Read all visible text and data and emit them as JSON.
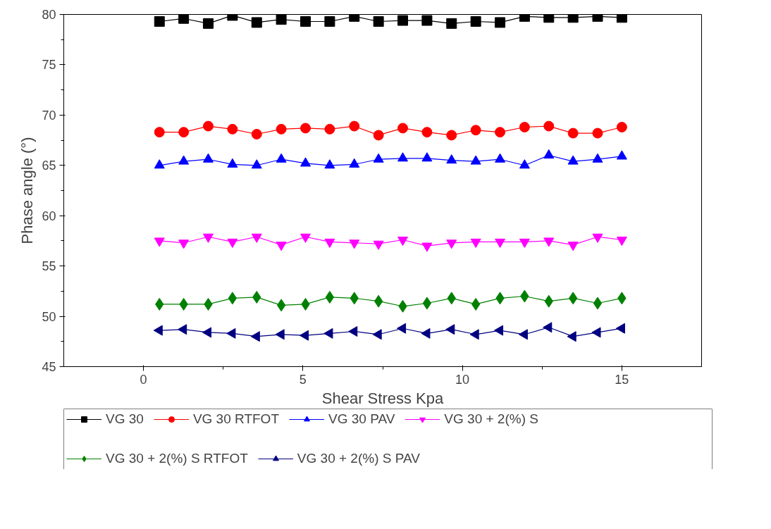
{
  "chart_data": {
    "type": "line",
    "xlabel": "Shear Stress Kpa",
    "ylabel": "Phase angle (°)",
    "x": [
      0.5,
      1.26,
      2.03,
      2.79,
      3.55,
      4.32,
      5.08,
      5.84,
      6.61,
      7.37,
      8.13,
      8.89,
      9.66,
      10.42,
      11.18,
      11.95,
      12.71,
      13.47,
      14.24,
      15.0
    ],
    "xlim": [
      -2.5,
      17.5
    ],
    "xticks": [
      0,
      5,
      10,
      15
    ],
    "ylim": [
      45,
      80
    ],
    "yticks": [
      45,
      50,
      55,
      60,
      65,
      70,
      75,
      80
    ],
    "grid": false,
    "legend": "bottom",
    "line_style": "solid",
    "series": [
      {
        "name": "VG 30",
        "color": "#000000",
        "marker": "square",
        "values": [
          79.3,
          79.6,
          79.1,
          79.9,
          79.2,
          79.5,
          79.3,
          79.3,
          79.8,
          79.3,
          79.4,
          79.4,
          79.1,
          79.3,
          79.2,
          79.8,
          79.7,
          79.7,
          79.8,
          79.7
        ]
      },
      {
        "name": "VG 30 RTFOT",
        "color": "#ff0000",
        "marker": "circle",
        "values": [
          68.3,
          68.3,
          68.9,
          68.6,
          68.1,
          68.6,
          68.7,
          68.6,
          68.9,
          68.0,
          68.7,
          68.3,
          68.0,
          68.5,
          68.3,
          68.8,
          68.9,
          68.2,
          68.2,
          68.8
        ]
      },
      {
        "name": "VG 30 PAV",
        "color": "#0000ff",
        "marker": "triangle",
        "values": [
          65.0,
          65.4,
          65.6,
          65.1,
          65.0,
          65.6,
          65.2,
          65.0,
          65.1,
          65.6,
          65.7,
          65.7,
          65.5,
          65.4,
          65.6,
          65.0,
          66.0,
          65.4,
          65.6,
          65.9
        ]
      },
      {
        "name": "VG 30 + 2(%) S",
        "color": "#ff00ff",
        "marker": "triangle",
        "values": [
          57.5,
          57.3,
          57.9,
          57.4,
          57.9,
          57.1,
          57.9,
          57.4,
          57.3,
          57.2,
          57.6,
          57.0,
          57.3,
          57.4,
          57.4,
          57.4,
          57.5,
          57.1,
          57.9,
          57.6
        ]
      },
      {
        "name": "VG 30 + 2(%) S RTFOT",
        "color": "#008000",
        "marker": "diamond",
        "values": [
          51.2,
          51.2,
          51.2,
          51.8,
          51.9,
          51.1,
          51.2,
          51.9,
          51.8,
          51.5,
          51.0,
          51.3,
          51.8,
          51.2,
          51.8,
          52.0,
          51.5,
          51.8,
          51.3,
          51.8
        ]
      },
      {
        "name": "VG 30 + 2(%) S PAV",
        "color": "#000080",
        "marker": "triangle",
        "values": [
          48.6,
          48.7,
          48.4,
          48.3,
          48.0,
          48.2,
          48.1,
          48.3,
          48.5,
          48.2,
          48.8,
          48.3,
          48.7,
          48.2,
          48.6,
          48.2,
          48.9,
          48.0,
          48.4,
          48.8
        ]
      }
    ]
  }
}
